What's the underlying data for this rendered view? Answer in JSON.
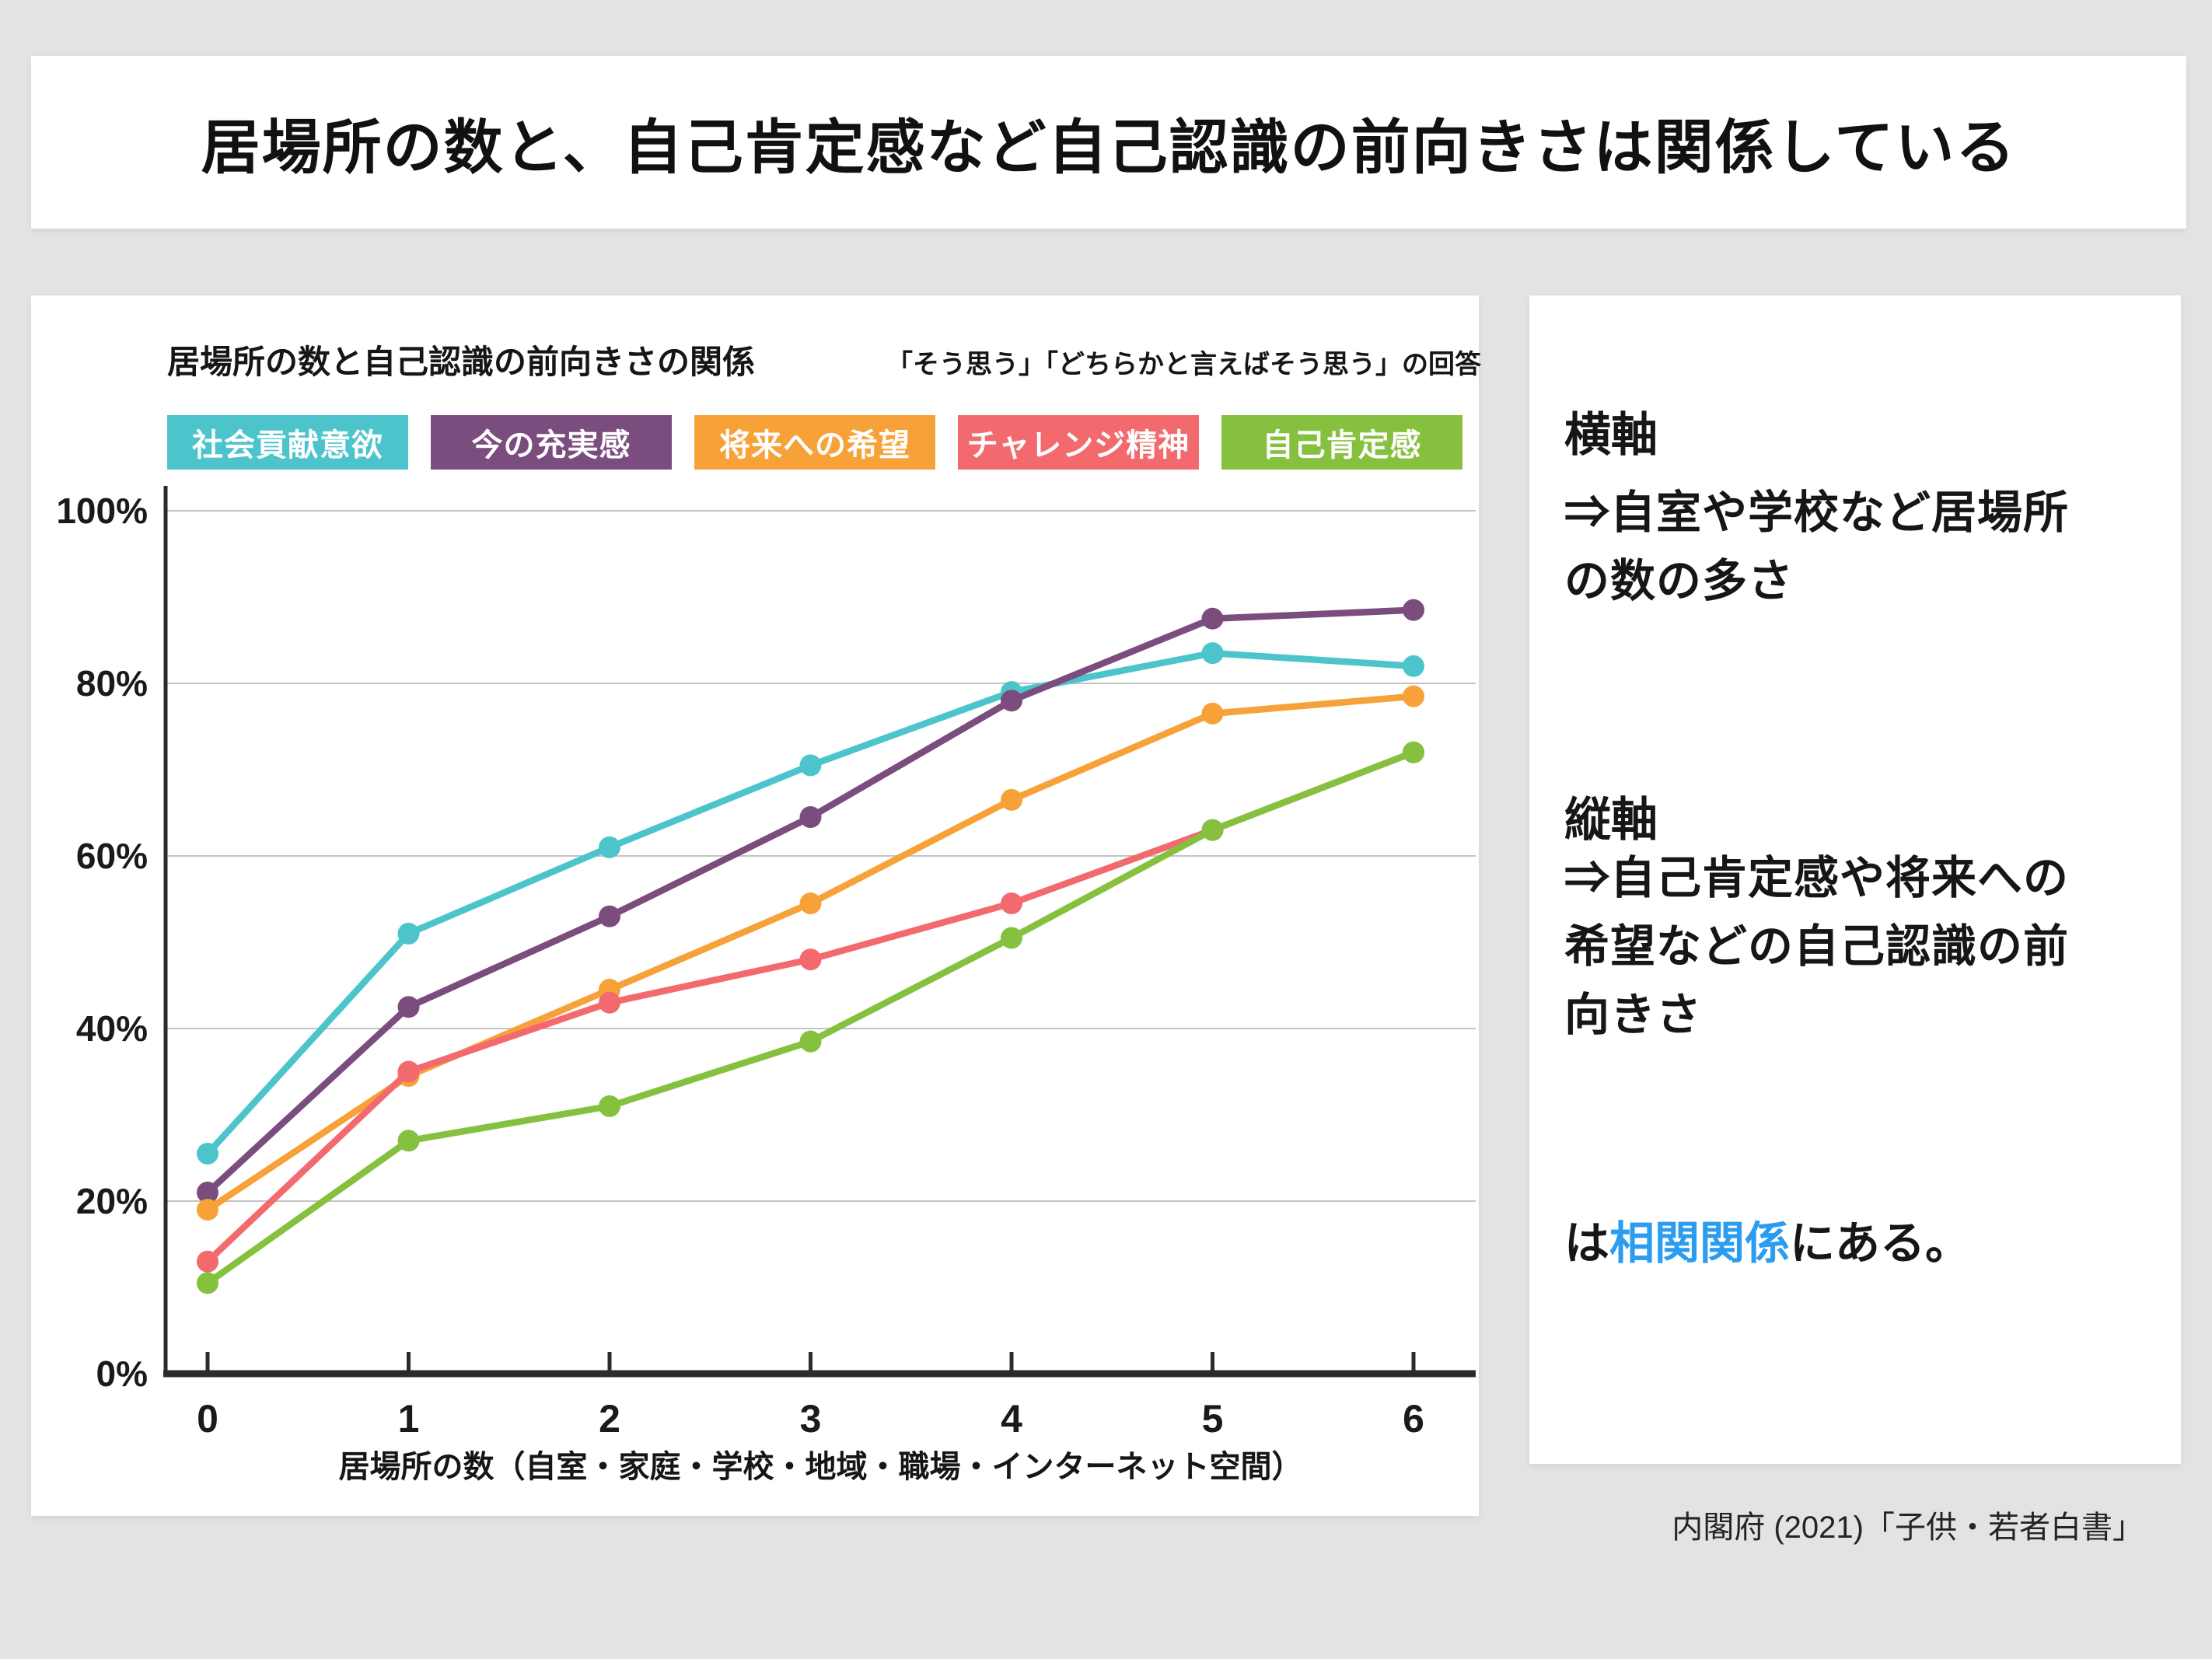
{
  "page_title": "居場所の数と、自己肯定感など自己認識の前向きさは関係している",
  "chart_data": {
    "type": "line",
    "title": "居場所の数と自己認識の前向きさの関係",
    "subtitle": "「そう思う」「どちらかと言えばそう思う」の回答",
    "x": [
      0,
      1,
      2,
      3,
      4,
      5,
      6
    ],
    "x_tick_labels": [
      "0",
      "1",
      "2",
      "3",
      "4",
      "5",
      "6"
    ],
    "xlabel": "居場所の数（自室・家庭・学校・地域・職場・インターネット空間）",
    "ylim": [
      0,
      100
    ],
    "y_tick_labels": [
      "0%",
      "20%",
      "40%",
      "60%",
      "80%",
      "100%"
    ],
    "grid": true,
    "legend_position": "top",
    "series": [
      {
        "name": "社会貢献意欲",
        "color": "#4DC4CC",
        "values": [
          25.5,
          51,
          61,
          70.5,
          79,
          83.5,
          82
        ]
      },
      {
        "name": "今の充実感",
        "color": "#7B4D7E",
        "values": [
          21,
          42.5,
          53,
          64.5,
          78,
          87.5,
          88.5
        ]
      },
      {
        "name": "将来への希望",
        "color": "#F7A239",
        "values": [
          19,
          34.5,
          44.5,
          54.5,
          66.5,
          76.5,
          78.5
        ]
      },
      {
        "name": "チャレンジ精神",
        "color": "#F26A6E",
        "values": [
          13,
          35,
          43,
          48,
          54.5,
          63,
          72
        ]
      },
      {
        "name": "自己肯定感",
        "color": "#85C13F",
        "values": [
          10.5,
          27,
          31,
          38.5,
          50.5,
          63,
          72
        ]
      }
    ]
  },
  "explanation": {
    "h_axis_heading": "横軸",
    "h_axis_text": "⇒自室や学校など居場所の数の多さ",
    "v_axis_heading": "縦軸",
    "v_axis_text": "⇒自己肯定感や将来への希望などの自己認識の前向きさ",
    "conclusion_prefix": "は",
    "conclusion_highlight": "相関関係",
    "conclusion_suffix": "にある。",
    "highlight_color": "#2B9CF0"
  },
  "source": "内閣府 (2021)「子供・若者白書」"
}
